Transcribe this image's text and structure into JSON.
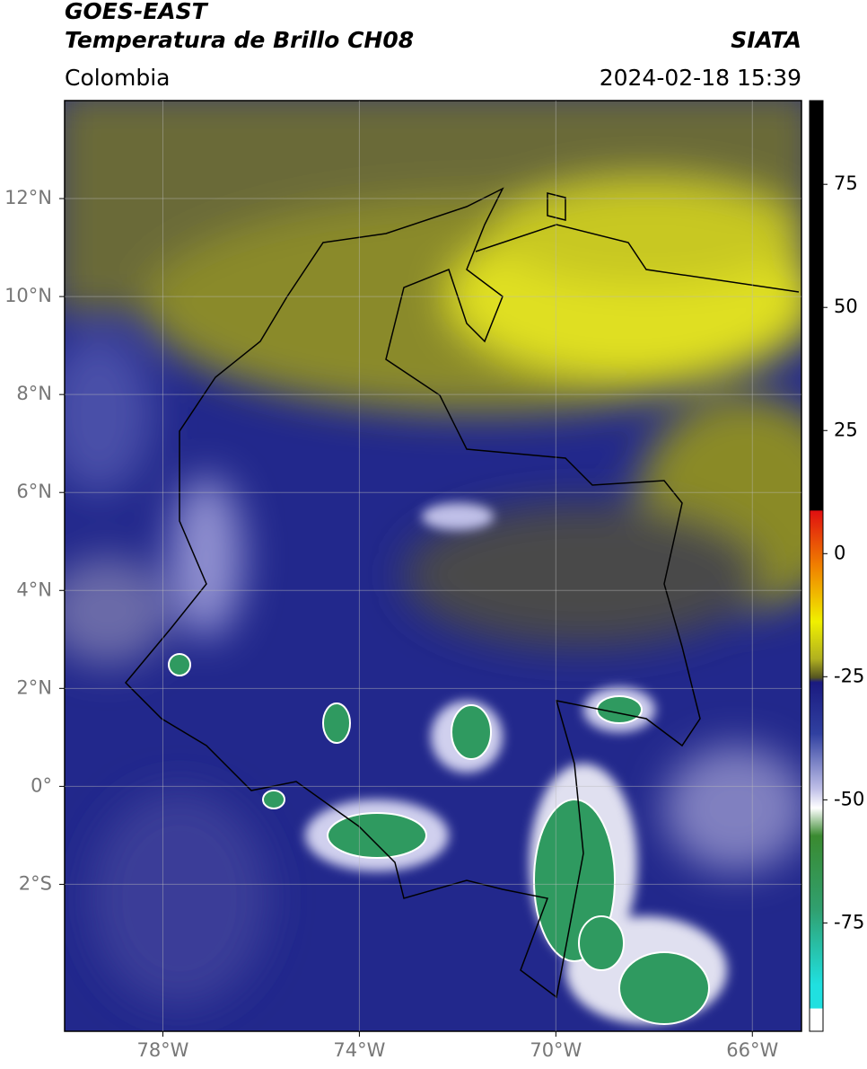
{
  "header": {
    "title": "GOES-EAST",
    "subtitle": "Temperatura de Brillo CH08",
    "source": "SIATA",
    "region": "Colombia",
    "timestamp": "2024-02-18 15:39"
  },
  "map": {
    "lon_range": [
      -80,
      -65
    ],
    "lat_range": [
      -5,
      14
    ],
    "lat_ticks": [
      {
        "value": 12,
        "label": "12°N"
      },
      {
        "value": 10,
        "label": "10°N"
      },
      {
        "value": 8,
        "label": "8°N"
      },
      {
        "value": 6,
        "label": "6°N"
      },
      {
        "value": 4,
        "label": "4°N"
      },
      {
        "value": 2,
        "label": "2°N"
      },
      {
        "value": 0,
        "label": "0°"
      },
      {
        "value": -2,
        "label": "2°S"
      }
    ],
    "lon_ticks": [
      {
        "value": -78,
        "label": "78°W"
      },
      {
        "value": -74,
        "label": "74°W"
      },
      {
        "value": -70,
        "label": "70°W"
      },
      {
        "value": -66,
        "label": "66°W"
      }
    ]
  },
  "colorbar": {
    "range": [
      -97,
      92
    ],
    "ticks": [
      75,
      50,
      25,
      0,
      -25,
      -50,
      -75
    ]
  }
}
